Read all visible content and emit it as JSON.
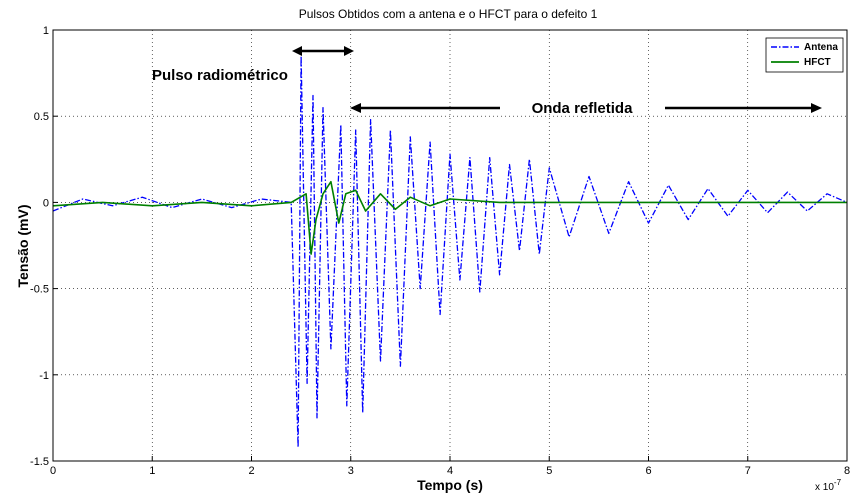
{
  "chart_data": {
    "type": "line",
    "title": "Pulsos Obtidos com a antena e o HFCT para o defeito 1",
    "xlabel": "Tempo (s)",
    "ylabel": "Tensão (mV)",
    "x_exponent_label": "x 10",
    "x_exponent_power": "-7",
    "xlim": [
      0,
      8
    ],
    "ylim": [
      -1.5,
      1
    ],
    "xticks": [
      "0",
      "1",
      "2",
      "3",
      "4",
      "5",
      "6",
      "7",
      "8"
    ],
    "yticks": [
      "-1.5",
      "-1",
      "-0.5",
      "0",
      "0.5",
      "1"
    ],
    "grid": true,
    "legend_position": "top-right",
    "series": [
      {
        "name": "Antena",
        "color": "#0000ff",
        "style": "dash-dot",
        "x": [
          0,
          0.3,
          0.6,
          0.9,
          1.2,
          1.5,
          1.8,
          2.1,
          2.4,
          2.47,
          2.5,
          2.56,
          2.62,
          2.66,
          2.72,
          2.8,
          2.9,
          2.96,
          3.05,
          3.12,
          3.2,
          3.3,
          3.4,
          3.5,
          3.6,
          3.7,
          3.8,
          3.9,
          4.0,
          4.1,
          4.2,
          4.3,
          4.4,
          4.5,
          4.6,
          4.7,
          4.8,
          4.9,
          5.0,
          5.2,
          5.4,
          5.6,
          5.8,
          6.0,
          6.2,
          6.4,
          6.6,
          6.8,
          7.0,
          7.2,
          7.4,
          7.6,
          7.8,
          8.0
        ],
        "y": [
          -0.05,
          0.02,
          -0.02,
          0.03,
          -0.03,
          0.02,
          -0.03,
          0.02,
          0.0,
          -1.42,
          0.85,
          -1.05,
          0.62,
          -1.25,
          0.55,
          -0.85,
          0.45,
          -1.18,
          0.42,
          -1.22,
          0.48,
          -0.92,
          0.42,
          -0.95,
          0.38,
          -0.5,
          0.35,
          -0.65,
          0.28,
          -0.45,
          0.26,
          -0.52,
          0.26,
          -0.42,
          0.22,
          -0.28,
          0.25,
          -0.3,
          0.2,
          -0.2,
          0.15,
          -0.18,
          0.12,
          -0.12,
          0.1,
          -0.1,
          0.08,
          -0.08,
          0.07,
          -0.06,
          0.06,
          -0.05,
          0.05,
          0.0
        ]
      },
      {
        "name": "HFCT",
        "color": "#008000",
        "style": "solid",
        "x": [
          0,
          0.5,
          1.0,
          1.5,
          2.0,
          2.4,
          2.55,
          2.6,
          2.65,
          2.72,
          2.8,
          2.88,
          2.95,
          3.05,
          3.15,
          3.3,
          3.45,
          3.6,
          3.8,
          4.0,
          4.5,
          5.0,
          6.0,
          7.0,
          8.0
        ],
        "y": [
          -0.02,
          0.0,
          -0.02,
          0.0,
          -0.02,
          0.0,
          0.05,
          -0.3,
          -0.1,
          0.05,
          0.12,
          -0.12,
          0.05,
          0.07,
          -0.05,
          0.05,
          -0.04,
          0.03,
          -0.02,
          0.02,
          0.0,
          0.0,
          0.0,
          0.0,
          0.0
        ]
      }
    ],
    "annotations": {
      "pulse_label": "Pulso radiométrico",
      "reflected_label": "Onda refletida"
    }
  }
}
